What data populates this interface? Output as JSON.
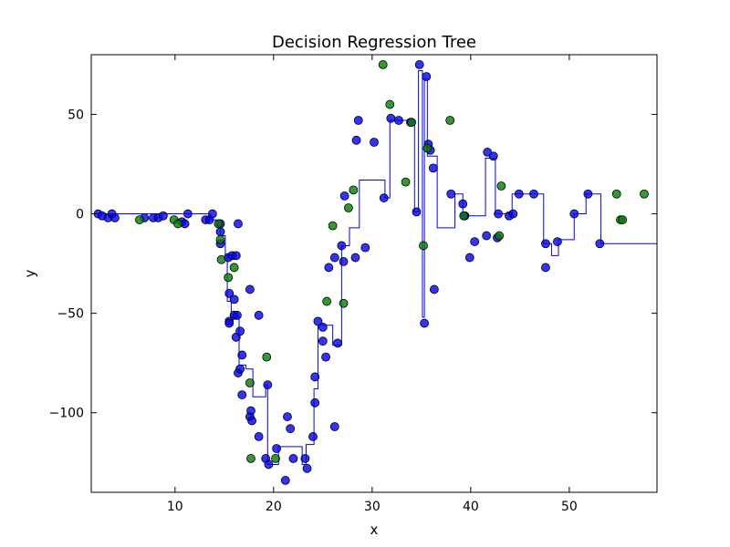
{
  "chart_data": {
    "type": "scatter",
    "title": "Decision Regression Tree",
    "xlabel": "x",
    "ylabel": "y",
    "xlim": [
      1.5,
      58.9
    ],
    "ylim": [
      -140,
      80
    ],
    "xticks": [
      10,
      20,
      30,
      40,
      50
    ],
    "yticks": [
      -100,
      -50,
      0,
      50
    ],
    "ytick_labels": [
      "−100",
      "−50",
      "0",
      "50"
    ],
    "grid": false,
    "legend": "none",
    "colors": {
      "series_a": "#0000ff",
      "series_b": "#008000",
      "step_line": "#0000ff"
    },
    "series": [
      {
        "marker": "circle",
        "color": "#0000ff",
        "points": [
          [
            2.2,
            0
          ],
          [
            2.6,
            -1
          ],
          [
            3.2,
            -2
          ],
          [
            3.6,
            0
          ],
          [
            3.9,
            -2
          ],
          [
            6.9,
            -2
          ],
          [
            7.8,
            -2
          ],
          [
            8.3,
            -2
          ],
          [
            8.8,
            -1
          ],
          [
            10.7,
            -4
          ],
          [
            11,
            -5
          ],
          [
            11.3,
            0
          ],
          [
            13.1,
            -3
          ],
          [
            13.5,
            -3
          ],
          [
            13.8,
            0
          ],
          [
            14.6,
            -5
          ],
          [
            14.6,
            -9
          ],
          [
            14.6,
            -15
          ],
          [
            15.4,
            -22
          ],
          [
            15.5,
            -40
          ],
          [
            15.5,
            -54
          ],
          [
            15.5,
            -55
          ],
          [
            15.8,
            -21
          ],
          [
            16.0,
            -43
          ],
          [
            16.2,
            -21
          ],
          [
            16.0,
            -51
          ],
          [
            16.2,
            -62
          ],
          [
            16.3,
            -51
          ],
          [
            16.4,
            -5
          ],
          [
            16.6,
            -59
          ],
          [
            16.4,
            -80
          ],
          [
            16.6,
            -78
          ],
          [
            16.8,
            -71
          ],
          [
            16.8,
            -91
          ],
          [
            17.6,
            -38
          ],
          [
            17.6,
            -102
          ],
          [
            17.7,
            -99
          ],
          [
            17.8,
            -104
          ],
          [
            18.5,
            -51
          ],
          [
            18.5,
            -112
          ],
          [
            19.2,
            -123
          ],
          [
            19.4,
            -86
          ],
          [
            19.5,
            -126
          ],
          [
            20.3,
            -118
          ],
          [
            21.2,
            -134
          ],
          [
            21.4,
            -102
          ],
          [
            21.7,
            -108
          ],
          [
            22.0,
            -123
          ],
          [
            23.2,
            -123
          ],
          [
            23.4,
            -128
          ],
          [
            24.0,
            -112
          ],
          [
            24.2,
            -82
          ],
          [
            24.2,
            -95
          ],
          [
            24.5,
            -54
          ],
          [
            25.0,
            -57
          ],
          [
            25.0,
            -64
          ],
          [
            25.3,
            -72
          ],
          [
            25.6,
            -27
          ],
          [
            26.2,
            -22
          ],
          [
            26.2,
            -107
          ],
          [
            26.5,
            -65
          ],
          [
            26.9,
            -16
          ],
          [
            27.1,
            -24
          ],
          [
            27.2,
            9
          ],
          [
            28.3,
            -22
          ],
          [
            28.4,
            37
          ],
          [
            28.6,
            47
          ],
          [
            29.3,
            -17
          ],
          [
            30.2,
            36
          ],
          [
            31.2,
            8
          ],
          [
            31.9,
            48
          ],
          [
            32.7,
            47
          ],
          [
            33.9,
            46
          ],
          [
            34.5,
            1
          ],
          [
            34.8,
            75
          ],
          [
            35.3,
            -55
          ],
          [
            35.5,
            69
          ],
          [
            35.7,
            35
          ],
          [
            35.9,
            32
          ],
          [
            36.2,
            23
          ],
          [
            36.3,
            -38
          ],
          [
            38.0,
            10
          ],
          [
            39.2,
            5
          ],
          [
            39.4,
            -1
          ],
          [
            39.9,
            -22
          ],
          [
            40.4,
            -14
          ],
          [
            41.6,
            -11
          ],
          [
            41.7,
            31
          ],
          [
            42.3,
            29
          ],
          [
            42.7,
            -12
          ],
          [
            42.8,
            0
          ],
          [
            43.9,
            -1
          ],
          [
            44.3,
            0
          ],
          [
            44.9,
            10
          ],
          [
            46.4,
            10
          ],
          [
            47.6,
            -15
          ],
          [
            47.6,
            -27
          ],
          [
            48.8,
            -14
          ],
          [
            50.5,
            0
          ],
          [
            51.9,
            10
          ],
          [
            53.1,
            -15
          ]
        ]
      },
      {
        "marker": "circle",
        "color": "#008000",
        "points": [
          [
            6.4,
            -3
          ],
          [
            9.9,
            -3
          ],
          [
            10.3,
            -5
          ],
          [
            14.4,
            -5
          ],
          [
            14.7,
            -23
          ],
          [
            15.4,
            -32
          ],
          [
            14.6,
            -13
          ],
          [
            16.0,
            -27
          ],
          [
            17.6,
            -85
          ],
          [
            17.7,
            -123
          ],
          [
            19.3,
            -72
          ],
          [
            20.2,
            -123
          ],
          [
            25.4,
            -44
          ],
          [
            26.0,
            -6
          ],
          [
            27.1,
            -45
          ],
          [
            27.6,
            3
          ],
          [
            28.1,
            12
          ],
          [
            31.1,
            75
          ],
          [
            31.8,
            55
          ],
          [
            33.4,
            16
          ],
          [
            34.0,
            46
          ],
          [
            35.2,
            -16
          ],
          [
            35.6,
            33
          ],
          [
            37.9,
            47
          ],
          [
            39.3,
            -1
          ],
          [
            42.9,
            -11
          ],
          [
            43.1,
            14
          ],
          [
            54.8,
            10
          ],
          [
            55.2,
            -3
          ],
          [
            55.4,
            -3
          ],
          [
            57.6,
            10
          ]
        ]
      }
    ],
    "step_line": {
      "color": "#0000ff",
      "points": [
        [
          1.5,
          0
        ],
        [
          13.6,
          0
        ],
        [
          13.6,
          -3
        ],
        [
          14.2,
          -3
        ],
        [
          14.2,
          -6
        ],
        [
          14.6,
          -6
        ],
        [
          14.6,
          -11
        ],
        [
          15.1,
          -11
        ],
        [
          15.1,
          -21
        ],
        [
          15.3,
          -21
        ],
        [
          15.3,
          -44
        ],
        [
          15.7,
          -44
        ],
        [
          15.7,
          -52
        ],
        [
          16.5,
          -52
        ],
        [
          16.5,
          -76
        ],
        [
          17.2,
          -76
        ],
        [
          17.2,
          -78
        ],
        [
          17.9,
          -78
        ],
        [
          17.9,
          -92
        ],
        [
          19.2,
          -92
        ],
        [
          19.2,
          -86
        ],
        [
          19.4,
          -86
        ],
        [
          19.4,
          -126
        ],
        [
          20.5,
          -126
        ],
        [
          20.5,
          -117
        ],
        [
          22.9,
          -117
        ],
        [
          22.9,
          -126
        ],
        [
          23.3,
          -126
        ],
        [
          23.3,
          -116
        ],
        [
          24.1,
          -116
        ],
        [
          24.1,
          -88
        ],
        [
          24.5,
          -88
        ],
        [
          24.5,
          -56
        ],
        [
          26.0,
          -56
        ],
        [
          26.0,
          -66
        ],
        [
          26.9,
          -66
        ],
        [
          26.9,
          -16
        ],
        [
          27.7,
          -16
        ],
        [
          27.7,
          -7
        ],
        [
          28.7,
          -7
        ],
        [
          28.7,
          17
        ],
        [
          31.3,
          17
        ],
        [
          31.3,
          8
        ],
        [
          31.8,
          8
        ],
        [
          31.8,
          47
        ],
        [
          34.3,
          47
        ],
        [
          34.3,
          1
        ],
        [
          34.7,
          1
        ],
        [
          34.7,
          72
        ],
        [
          35.1,
          72
        ],
        [
          35.1,
          -52
        ],
        [
          35.3,
          -52
        ],
        [
          35.3,
          68
        ],
        [
          35.6,
          68
        ],
        [
          35.6,
          29
        ],
        [
          36.6,
          29
        ],
        [
          36.6,
          -7
        ],
        [
          38.4,
          -7
        ],
        [
          38.4,
          10
        ],
        [
          39.2,
          10
        ],
        [
          39.2,
          -1
        ],
        [
          41.5,
          -1
        ],
        [
          41.5,
          28
        ],
        [
          42.5,
          28
        ],
        [
          42.5,
          0
        ],
        [
          44.2,
          0
        ],
        [
          44.2,
          10
        ],
        [
          47.4,
          10
        ],
        [
          47.4,
          -15
        ],
        [
          48.2,
          -15
        ],
        [
          48.2,
          -21
        ],
        [
          48.9,
          -21
        ],
        [
          48.9,
          -13
        ],
        [
          50.5,
          -13
        ],
        [
          50.5,
          0
        ],
        [
          51.7,
          0
        ],
        [
          51.7,
          10
        ],
        [
          53.2,
          10
        ],
        [
          53.2,
          -15
        ],
        [
          58.9,
          -15
        ]
      ]
    }
  }
}
